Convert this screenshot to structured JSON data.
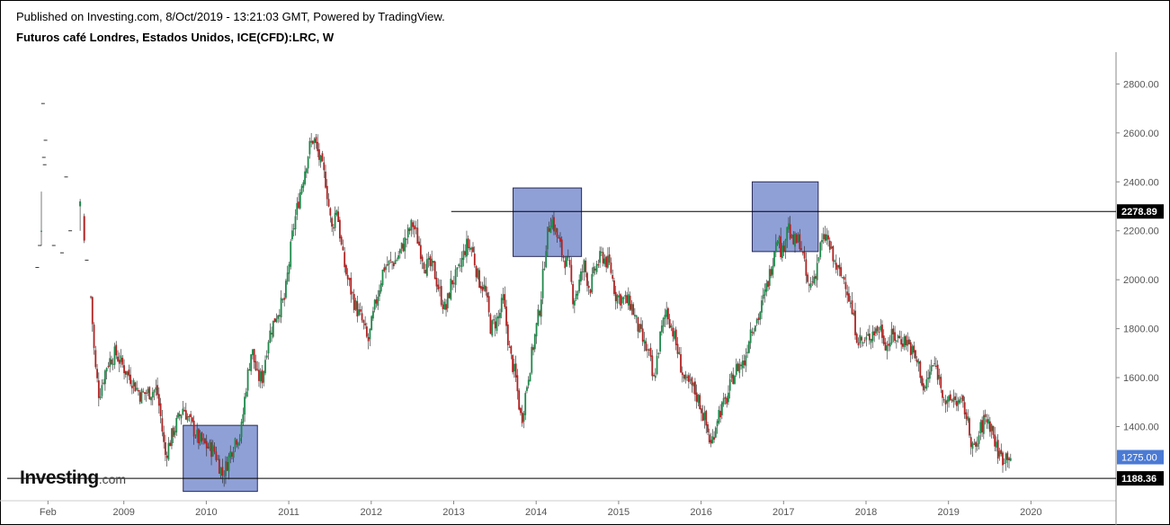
{
  "header": {
    "published": "Published on Investing.com, 8/Oct/2019 - 13:21:03 GMT, Powered by TradingView.",
    "symbol": "Futuros café Londres, Estados Unidos, ICE(CFD):LRC, W"
  },
  "logo": {
    "main": "Investing",
    "suffix": ".com"
  },
  "colors": {
    "up": "#1e8a4a",
    "down": "#b22222",
    "box_fill": "#7b8fd0",
    "box_stroke": "#2a2a55",
    "last_price_bg": "#4a7ad4",
    "level_bg": "#000000",
    "axis_text": "#555555"
  },
  "chart_data": {
    "type": "candlestick",
    "interval": "W",
    "ylim": [
      1130,
      2930
    ],
    "y_ticks": [
      1400,
      1600,
      1800,
      2000,
      2200,
      2400,
      2600,
      2800
    ],
    "y_tick_labels": [
      "1400.00",
      "1600.00",
      "1800.00",
      "2000.00",
      "2200.00",
      "2400.00",
      "2600.00",
      "2800.00"
    ],
    "x_range": [
      2008.0,
      2020.0
    ],
    "x_ticks": [
      {
        "label": "Feb",
        "x": 2008.08
      },
      {
        "label": "2009",
        "x": 2009.0
      },
      {
        "label": "2010",
        "x": 2010.0
      },
      {
        "label": "2011",
        "x": 2011.0
      },
      {
        "label": "2012",
        "x": 2012.0
      },
      {
        "label": "2013",
        "x": 2013.0
      },
      {
        "label": "2014",
        "x": 2014.0
      },
      {
        "label": "2015",
        "x": 2015.0
      },
      {
        "label": "2016",
        "x": 2016.0
      },
      {
        "label": "2017",
        "x": 2017.0
      },
      {
        "label": "2018",
        "x": 2018.0
      },
      {
        "label": "2019",
        "x": 2019.0
      },
      {
        "label": "2020",
        "x": 2020.0
      }
    ],
    "price_labels": [
      {
        "value": 2278.89,
        "label": "2278.89",
        "style": "level"
      },
      {
        "value": 1275.0,
        "label": "1275.00",
        "style": "last"
      },
      {
        "value": 1188.36,
        "label": "1188.36",
        "style": "level"
      }
    ],
    "horizontal_lines": [
      {
        "value": 2278.89,
        "x_start": 2012.97
      },
      {
        "value": 1188.36,
        "x_start": 2007.0
      }
    ],
    "highlight_boxes": [
      {
        "x0": 2009.72,
        "x1": 2010.62,
        "y0": 1135,
        "y1": 1405
      },
      {
        "x0": 2013.72,
        "x1": 2014.55,
        "y0": 2095,
        "y1": 2375
      },
      {
        "x0": 2016.62,
        "x1": 2017.42,
        "y0": 2115,
        "y1": 2400
      }
    ],
    "path_points": [
      [
        2007.98,
        2030
      ],
      [
        2008.02,
        2150
      ],
      [
        2008.08,
        2230
      ],
      [
        2008.2,
        2180
      ],
      [
        2008.35,
        2190
      ],
      [
        2008.45,
        2240
      ],
      [
        2008.55,
        2130
      ],
      [
        2008.6,
        1930
      ],
      [
        2008.65,
        1650
      ],
      [
        2008.7,
        1530
      ],
      [
        2008.8,
        1660
      ],
      [
        2008.9,
        1700
      ],
      [
        2009.0,
        1640
      ],
      [
        2009.1,
        1590
      ],
      [
        2009.2,
        1530
      ],
      [
        2009.3,
        1540
      ],
      [
        2009.4,
        1550
      ],
      [
        2009.45,
        1430
      ],
      [
        2009.5,
        1280
      ],
      [
        2009.6,
        1380
      ],
      [
        2009.72,
        1480
      ],
      [
        2009.8,
        1420
      ],
      [
        2009.9,
        1350
      ],
      [
        2010.0,
        1320
      ],
      [
        2010.1,
        1300
      ],
      [
        2010.15,
        1250
      ],
      [
        2010.2,
        1200
      ],
      [
        2010.3,
        1300
      ],
      [
        2010.35,
        1350
      ],
      [
        2010.42,
        1370
      ],
      [
        2010.48,
        1560
      ],
      [
        2010.55,
        1720
      ],
      [
        2010.62,
        1600
      ],
      [
        2010.68,
        1600
      ],
      [
        2010.75,
        1760
      ],
      [
        2010.85,
        1860
      ],
      [
        2010.95,
        1920
      ],
      [
        2011.05,
        2200
      ],
      [
        2011.15,
        2380
      ],
      [
        2011.25,
        2540
      ],
      [
        2011.3,
        2580
      ],
      [
        2011.35,
        2520
      ],
      [
        2011.45,
        2400
      ],
      [
        2011.52,
        2200
      ],
      [
        2011.58,
        2300
      ],
      [
        2011.65,
        2100
      ],
      [
        2011.7,
        2020
      ],
      [
        2011.8,
        1900
      ],
      [
        2011.9,
        1820
      ],
      [
        2011.96,
        1740
      ],
      [
        2012.05,
        1900
      ],
      [
        2012.15,
        2050
      ],
      [
        2012.3,
        2080
      ],
      [
        2012.4,
        2150
      ],
      [
        2012.5,
        2230
      ],
      [
        2012.55,
        2180
      ],
      [
        2012.65,
        2060
      ],
      [
        2012.75,
        2050
      ],
      [
        2012.82,
        1960
      ],
      [
        2012.9,
        1870
      ],
      [
        2012.97,
        1990
      ],
      [
        2013.05,
        2020
      ],
      [
        2013.15,
        2140
      ],
      [
        2013.22,
        2130
      ],
      [
        2013.3,
        2000
      ],
      [
        2013.38,
        1960
      ],
      [
        2013.45,
        1800
      ],
      [
        2013.55,
        1850
      ],
      [
        2013.6,
        1920
      ],
      [
        2013.68,
        1700
      ],
      [
        2013.75,
        1600
      ],
      [
        2013.82,
        1420
      ],
      [
        2013.9,
        1600
      ],
      [
        2013.98,
        1760
      ],
      [
        2014.05,
        1900
      ],
      [
        2014.12,
        2150
      ],
      [
        2014.18,
        2260
      ],
      [
        2014.25,
        2180
      ],
      [
        2014.32,
        2100
      ],
      [
        2014.4,
        2050
      ],
      [
        2014.45,
        1920
      ],
      [
        2014.5,
        1960
      ],
      [
        2014.58,
        2060
      ],
      [
        2014.65,
        1960
      ],
      [
        2014.72,
        2050
      ],
      [
        2014.8,
        2100
      ],
      [
        2014.9,
        2050
      ],
      [
        2014.96,
        1940
      ],
      [
        2015.05,
        1920
      ],
      [
        2015.15,
        1900
      ],
      [
        2015.22,
        1820
      ],
      [
        2015.3,
        1740
      ],
      [
        2015.38,
        1680
      ],
      [
        2015.42,
        1570
      ],
      [
        2015.5,
        1760
      ],
      [
        2015.58,
        1880
      ],
      [
        2015.65,
        1800
      ],
      [
        2015.72,
        1700
      ],
      [
        2015.8,
        1580
      ],
      [
        2015.9,
        1560
      ],
      [
        2015.98,
        1500
      ],
      [
        2016.05,
        1420
      ],
      [
        2016.12,
        1320
      ],
      [
        2016.2,
        1450
      ],
      [
        2016.3,
        1500
      ],
      [
        2016.38,
        1600
      ],
      [
        2016.45,
        1650
      ],
      [
        2016.52,
        1660
      ],
      [
        2016.6,
        1800
      ],
      [
        2016.7,
        1850
      ],
      [
        2016.78,
        1950
      ],
      [
        2016.85,
        2050
      ],
      [
        2016.92,
        2200
      ],
      [
        2016.98,
        2100
      ],
      [
        2017.05,
        2240
      ],
      [
        2017.1,
        2150
      ],
      [
        2017.2,
        2160
      ],
      [
        2017.25,
        2060
      ],
      [
        2017.3,
        1960
      ],
      [
        2017.38,
        2020
      ],
      [
        2017.45,
        2140
      ],
      [
        2017.52,
        2180
      ],
      [
        2017.6,
        2080
      ],
      [
        2017.68,
        2020
      ],
      [
        2017.75,
        2000
      ],
      [
        2017.82,
        1880
      ],
      [
        2017.9,
        1760
      ],
      [
        2017.98,
        1740
      ],
      [
        2018.08,
        1790
      ],
      [
        2018.18,
        1800
      ],
      [
        2018.25,
        1730
      ],
      [
        2018.32,
        1770
      ],
      [
        2018.4,
        1760
      ],
      [
        2018.5,
        1750
      ],
      [
        2018.58,
        1690
      ],
      [
        2018.65,
        1640
      ],
      [
        2018.7,
        1540
      ],
      [
        2018.8,
        1650
      ],
      [
        2018.85,
        1640
      ],
      [
        2018.92,
        1560
      ],
      [
        2018.98,
        1480
      ],
      [
        2019.05,
        1520
      ],
      [
        2019.12,
        1500
      ],
      [
        2019.2,
        1470
      ],
      [
        2019.25,
        1380
      ],
      [
        2019.32,
        1290
      ],
      [
        2019.38,
        1380
      ],
      [
        2019.45,
        1440
      ],
      [
        2019.52,
        1400
      ],
      [
        2019.58,
        1310
      ],
      [
        2019.65,
        1270
      ],
      [
        2019.72,
        1290
      ],
      [
        2019.77,
        1275
      ]
    ],
    "early_ticks": [
      [
        2008.02,
        2720
      ],
      [
        2008.05,
        2570
      ],
      [
        2008.03,
        2500
      ],
      [
        2008.04,
        2470
      ],
      [
        2007.98,
        2140
      ],
      [
        2008.15,
        2140
      ],
      [
        2008.25,
        2110
      ],
      [
        2008.3,
        2420
      ],
      [
        2008.35,
        2200
      ],
      [
        2007.95,
        2050
      ],
      [
        2008.55,
        2080
      ]
    ]
  }
}
